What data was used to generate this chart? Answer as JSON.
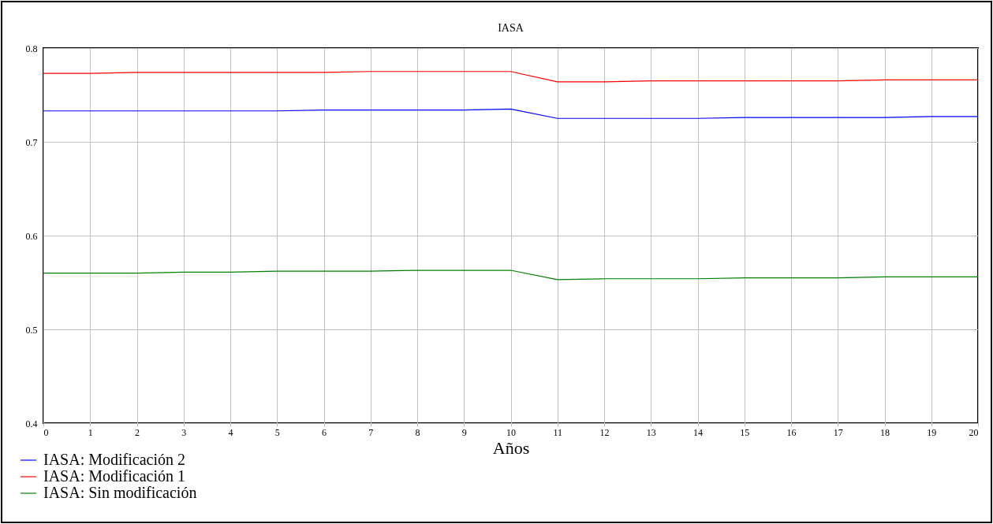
{
  "chart_data": {
    "type": "line",
    "title": "IASA",
    "xlabel": "Años",
    "x": [
      0,
      1,
      2,
      3,
      4,
      5,
      6,
      7,
      8,
      9,
      10,
      11,
      12,
      13,
      14,
      15,
      16,
      17,
      18,
      19,
      20
    ],
    "series": [
      {
        "name": "IASA: Modificación 2",
        "color": "#0000ff",
        "values": [
          0.733,
          0.733,
          0.733,
          0.733,
          0.733,
          0.733,
          0.734,
          0.734,
          0.734,
          0.734,
          0.735,
          0.725,
          0.725,
          0.725,
          0.725,
          0.726,
          0.726,
          0.726,
          0.726,
          0.727,
          0.727
        ]
      },
      {
        "name": "IASA: Modificación 1",
        "color": "#ff0000",
        "values": [
          0.773,
          0.773,
          0.774,
          0.774,
          0.774,
          0.774,
          0.774,
          0.775,
          0.775,
          0.775,
          0.775,
          0.764,
          0.764,
          0.765,
          0.765,
          0.765,
          0.765,
          0.765,
          0.766,
          0.766,
          0.766
        ]
      },
      {
        "name": "IASA: Sin modificación",
        "color": "#008000",
        "values": [
          0.56,
          0.56,
          0.56,
          0.561,
          0.561,
          0.562,
          0.562,
          0.562,
          0.563,
          0.563,
          0.563,
          0.553,
          0.554,
          0.554,
          0.554,
          0.555,
          0.555,
          0.555,
          0.556,
          0.556,
          0.556
        ]
      }
    ],
    "xlim": [
      0,
      20
    ],
    "xticks": [
      0,
      1,
      2,
      3,
      4,
      5,
      6,
      7,
      8,
      9,
      10,
      11,
      12,
      13,
      14,
      15,
      16,
      17,
      18,
      19,
      20
    ],
    "ylim": [
      0.4,
      0.8
    ],
    "yticks": [
      0.4,
      0.5,
      0.6,
      0.7,
      0.8
    ],
    "grid": true,
    "legend": "bottom left",
    "marker": "none",
    "line_style": "solid"
  }
}
